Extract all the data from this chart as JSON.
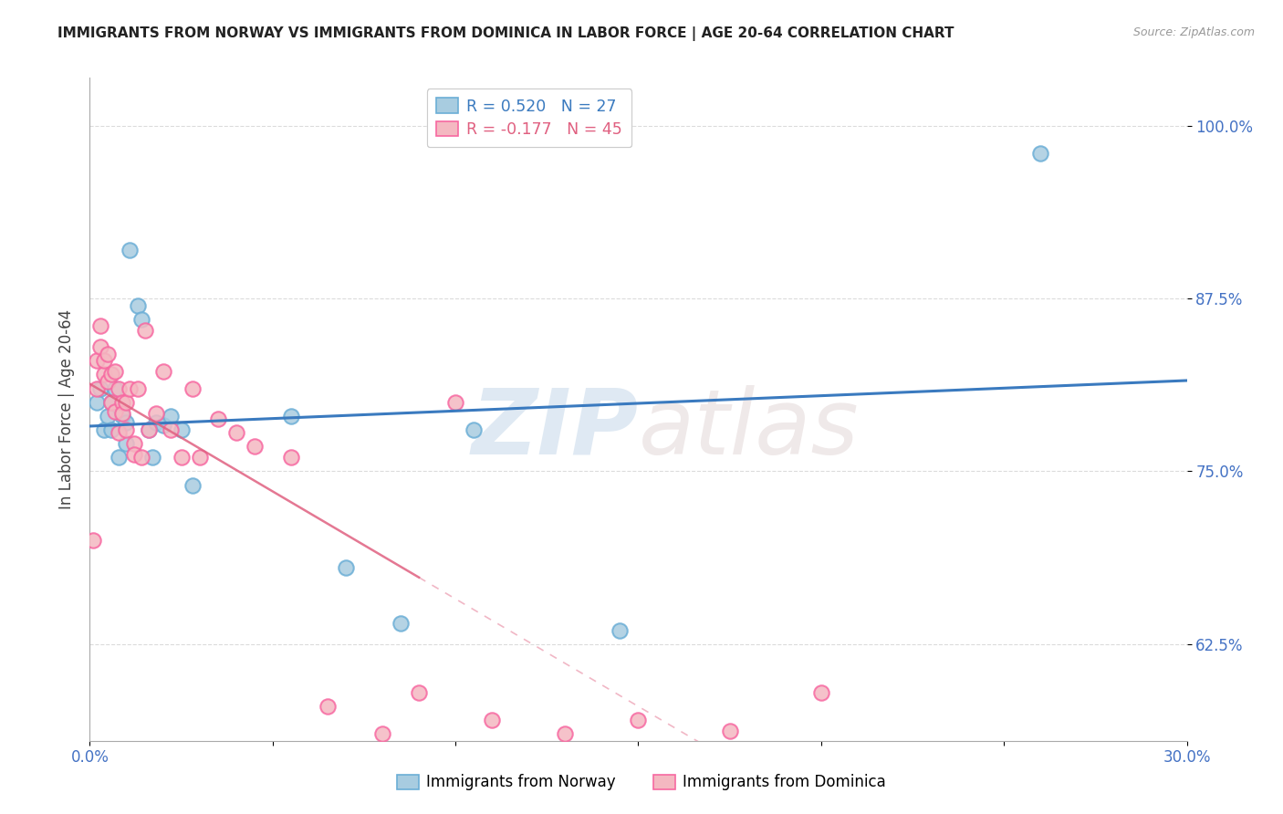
{
  "title": "IMMIGRANTS FROM NORWAY VS IMMIGRANTS FROM DOMINICA IN LABOR FORCE | AGE 20-64 CORRELATION CHART",
  "source": "Source: ZipAtlas.com",
  "ylabel": "In Labor Force | Age 20-64",
  "xlim": [
    0.0,
    0.3
  ],
  "ylim": [
    0.555,
    1.035
  ],
  "xticks": [
    0.0,
    0.05,
    0.1,
    0.15,
    0.2,
    0.25,
    0.3
  ],
  "xticklabels": [
    "0.0%",
    "",
    "",
    "",
    "",
    "",
    "30.0%"
  ],
  "yticks": [
    0.625,
    0.75,
    0.875,
    1.0
  ],
  "yticklabels": [
    "62.5%",
    "75.0%",
    "87.5%",
    "100.0%"
  ],
  "norway_color": "#a8cce0",
  "dominica_color": "#f4b8c1",
  "norway_edge_color": "#6baed6",
  "dominica_edge_color": "#f768a1",
  "norway_line_color": "#3a7abf",
  "dominica_line_color": "#e06080",
  "norway_R": 0.52,
  "norway_N": 27,
  "dominica_R": -0.177,
  "dominica_N": 45,
  "norway_x": [
    0.002,
    0.003,
    0.004,
    0.005,
    0.006,
    0.006,
    0.007,
    0.008,
    0.009,
    0.01,
    0.01,
    0.011,
    0.013,
    0.014,
    0.016,
    0.017,
    0.018,
    0.02,
    0.022,
    0.025,
    0.028,
    0.055,
    0.07,
    0.085,
    0.105,
    0.145,
    0.26
  ],
  "norway_y": [
    0.8,
    0.81,
    0.78,
    0.79,
    0.8,
    0.78,
    0.81,
    0.76,
    0.79,
    0.77,
    0.785,
    0.91,
    0.87,
    0.86,
    0.78,
    0.76,
    0.785,
    0.783,
    0.79,
    0.78,
    0.74,
    0.79,
    0.68,
    0.64,
    0.78,
    0.635,
    0.98
  ],
  "dominica_x": [
    0.001,
    0.002,
    0.002,
    0.003,
    0.003,
    0.004,
    0.004,
    0.005,
    0.005,
    0.006,
    0.006,
    0.007,
    0.007,
    0.008,
    0.008,
    0.009,
    0.009,
    0.01,
    0.01,
    0.011,
    0.012,
    0.012,
    0.013,
    0.014,
    0.015,
    0.016,
    0.018,
    0.02,
    0.022,
    0.025,
    0.028,
    0.03,
    0.035,
    0.04,
    0.045,
    0.055,
    0.065,
    0.08,
    0.09,
    0.1,
    0.11,
    0.13,
    0.15,
    0.175,
    0.2
  ],
  "dominica_y": [
    0.7,
    0.83,
    0.81,
    0.84,
    0.855,
    0.82,
    0.83,
    0.835,
    0.815,
    0.82,
    0.8,
    0.793,
    0.822,
    0.81,
    0.778,
    0.8,
    0.792,
    0.8,
    0.78,
    0.81,
    0.77,
    0.762,
    0.81,
    0.76,
    0.852,
    0.78,
    0.792,
    0.822,
    0.78,
    0.76,
    0.81,
    0.76,
    0.788,
    0.778,
    0.768,
    0.76,
    0.58,
    0.56,
    0.59,
    0.8,
    0.57,
    0.56,
    0.57,
    0.562,
    0.59
  ],
  "watermark_zip": "ZIP",
  "watermark_atlas": "atlas",
  "background_color": "#ffffff",
  "grid_color": "#cccccc"
}
